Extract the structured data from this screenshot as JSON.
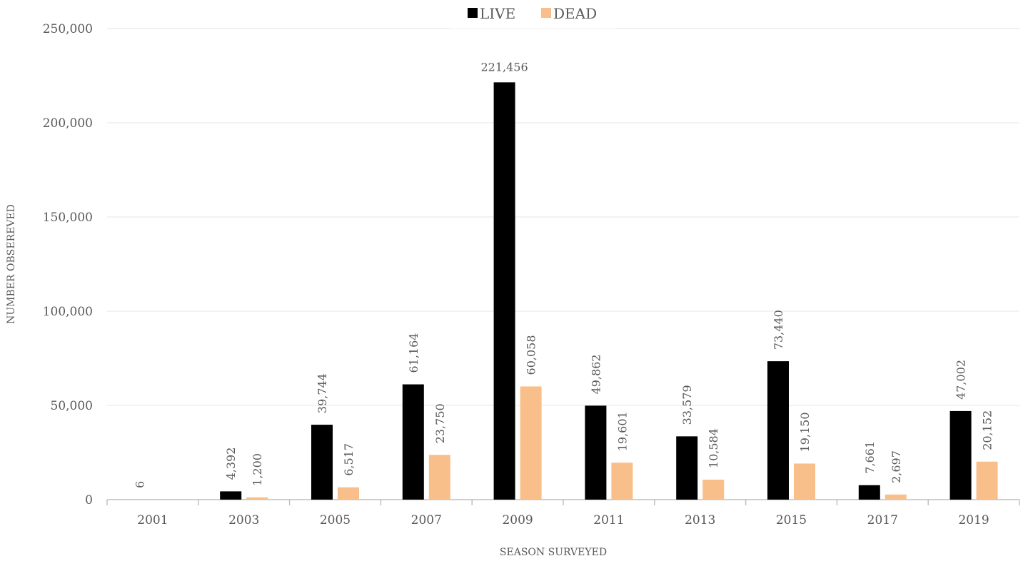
{
  "chart_data": {
    "type": "bar",
    "xlabel": "SEASON SURVEYED",
    "ylabel": "NUMBER OBSEREVED",
    "ylim": [
      0,
      250000
    ],
    "yticks": [
      "0",
      "50,000",
      "100,000",
      "150,000",
      "200,000",
      "250,000"
    ],
    "ytick_values": [
      0,
      50000,
      100000,
      150000,
      200000,
      250000
    ],
    "grid": true,
    "legend_position": "top-center",
    "categories": [
      "2001",
      "2003",
      "2005",
      "2007",
      "2009",
      "2011",
      "2013",
      "2015",
      "2017",
      "2019"
    ],
    "series": [
      {
        "name": "LIVE",
        "color": "#000000",
        "values": [
          6,
          4392,
          39744,
          61164,
          221456,
          49862,
          33579,
          73440,
          7661,
          47002
        ],
        "labels": [
          "6",
          "4,392",
          "39,744",
          "61,164",
          "221,456",
          "49,862",
          "33,579",
          "73,440",
          "7,661",
          "47,002"
        ]
      },
      {
        "name": "DEAD",
        "color": "#F8BF8A",
        "values": [
          null,
          1200,
          6517,
          23750,
          60058,
          19601,
          10584,
          19150,
          2697,
          20152
        ],
        "labels": [
          null,
          "1,200",
          "6,517",
          "23,750",
          "60,058",
          "19,601",
          "10,584",
          "19,150",
          "2,697",
          "20,152"
        ]
      }
    ]
  }
}
